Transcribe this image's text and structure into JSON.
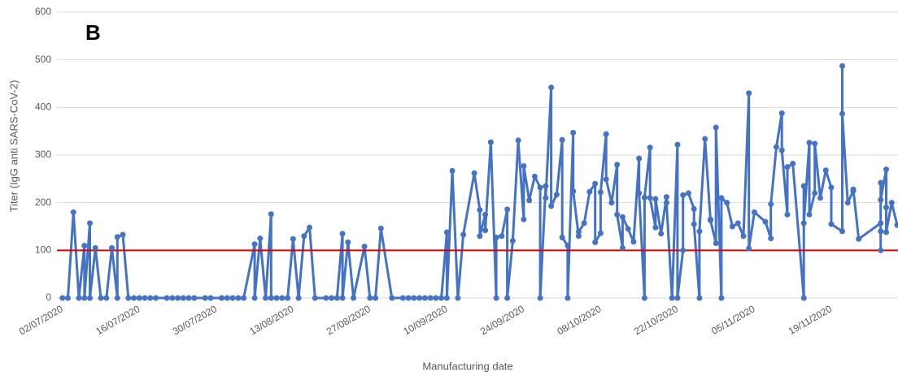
{
  "chart_data": {
    "type": "line",
    "title": "B",
    "x_label": "Manufacturing date",
    "y_label": "Titer (IgG anti SARS-CoV-2)",
    "color": "#4472c4",
    "hline": 100,
    "hline_color": "#e00000",
    "grid": true,
    "ylim": [
      0,
      600
    ],
    "yticks": [
      0,
      100,
      200,
      300,
      400,
      500,
      600
    ],
    "xlim": [
      "01/07/2020",
      "01/12/2020"
    ],
    "xticks": [
      "02/07/2020",
      "16/07/2020",
      "30/07/2020",
      "13/08/2020",
      "27/08/2020",
      "10/09/2020",
      "24/09/2020",
      "08/10/2020",
      "22/10/2020",
      "05/11/2020",
      "19/11/2020"
    ],
    "x": [
      "02/07/2020",
      "03/07/2020",
      "04/07/2020",
      "05/07/2020",
      "06/07/2020",
      "06/07/2020",
      "07/07/2020",
      "07/07/2020",
      "08/07/2020",
      "09/07/2020",
      "10/07/2020",
      "11/07/2020",
      "12/07/2020",
      "12/07/2020",
      "13/07/2020",
      "14/07/2020",
      "15/07/2020",
      "16/07/2020",
      "17/07/2020",
      "18/07/2020",
      "19/07/2020",
      "21/07/2020",
      "22/07/2020",
      "23/07/2020",
      "24/07/2020",
      "25/07/2020",
      "26/07/2020",
      "28/07/2020",
      "29/07/2020",
      "31/07/2020",
      "01/08/2020",
      "02/08/2020",
      "03/08/2020",
      "04/08/2020",
      "06/08/2020",
      "06/08/2020",
      "07/08/2020",
      "08/08/2020",
      "09/08/2020",
      "09/08/2020",
      "10/08/2020",
      "11/08/2020",
      "12/08/2020",
      "13/08/2020",
      "14/08/2020",
      "15/08/2020",
      "16/08/2020",
      "17/08/2020",
      "19/08/2020",
      "20/08/2020",
      "21/08/2020",
      "22/08/2020",
      "22/08/2020",
      "23/08/2020",
      "24/08/2020",
      "26/08/2020",
      "27/08/2020",
      "28/08/2020",
      "29/08/2020",
      "31/08/2020",
      "02/09/2020",
      "03/09/2020",
      "04/09/2020",
      "05/09/2020",
      "06/09/2020",
      "07/09/2020",
      "08/09/2020",
      "09/09/2020",
      "10/09/2020",
      "10/09/2020",
      "11/09/2020",
      "12/09/2020",
      "13/09/2020",
      "15/09/2020",
      "16/09/2020",
      "16/09/2020",
      "17/09/2020",
      "17/09/2020",
      "18/09/2020",
      "19/09/2020",
      "19/09/2020",
      "20/09/2020",
      "21/09/2020",
      "21/09/2020",
      "22/09/2020",
      "23/09/2020",
      "24/09/2020",
      "24/09/2020",
      "25/09/2020",
      "26/09/2020",
      "27/09/2020",
      "27/09/2020",
      "28/09/2020",
      "28/09/2020",
      "29/09/2020",
      "29/09/2020",
      "30/09/2020",
      "01/10/2020",
      "01/10/2020",
      "02/10/2020",
      "02/10/2020",
      "03/10/2020",
      "03/10/2020",
      "04/10/2020",
      "04/10/2020",
      "05/10/2020",
      "06/10/2020",
      "07/10/2020",
      "07/10/2020",
      "08/10/2020",
      "08/10/2020",
      "09/10/2020",
      "09/10/2020",
      "10/10/2020",
      "11/10/2020",
      "11/10/2020",
      "12/10/2020",
      "12/10/2020",
      "13/10/2020",
      "14/10/2020",
      "15/10/2020",
      "15/10/2020",
      "16/10/2020",
      "16/10/2020",
      "17/10/2020",
      "17/10/2020",
      "18/10/2020",
      "18/10/2020",
      "19/10/2020",
      "20/10/2020",
      "20/10/2020",
      "21/10/2020",
      "22/10/2020",
      "22/10/2020",
      "23/10/2020",
      "23/10/2020",
      "24/10/2020",
      "25/10/2020",
      "25/10/2020",
      "26/10/2020",
      "26/10/2020",
      "27/10/2020",
      "28/10/2020",
      "28/10/2020",
      "29/10/2020",
      "29/10/2020",
      "30/10/2020",
      "30/10/2020",
      "31/10/2020",
      "01/11/2020",
      "02/11/2020",
      "03/11/2020",
      "04/11/2020",
      "04/11/2020",
      "05/11/2020",
      "07/11/2020",
      "08/11/2020",
      "08/11/2020",
      "09/11/2020",
      "10/11/2020",
      "10/11/2020",
      "11/11/2020",
      "11/11/2020",
      "12/11/2020",
      "14/11/2020",
      "14/11/2020",
      "14/11/2020",
      "15/11/2020",
      "15/11/2020",
      "16/11/2020",
      "16/11/2020",
      "17/11/2020",
      "18/11/2020",
      "19/11/2020",
      "19/11/2020",
      "21/11/2020",
      "21/11/2020",
      "21/11/2020",
      "22/11/2020",
      "23/11/2020",
      "23/11/2020",
      "24/11/2020",
      "28/11/2020",
      "28/11/2020",
      "28/11/2020",
      "28/11/2020",
      "28/11/2020",
      "29/11/2020",
      "29/11/2020",
      "29/11/2020",
      "30/11/2020",
      "01/12/2020"
    ],
    "values": [
      0,
      0,
      180,
      0,
      110,
      0,
      157,
      0,
      105,
      0,
      0,
      105,
      0,
      128,
      133,
      0,
      0,
      0,
      0,
      0,
      0,
      0,
      0,
      0,
      0,
      0,
      0,
      0,
      0,
      0,
      0,
      0,
      0,
      0,
      113,
      0,
      125,
      0,
      176,
      0,
      0,
      0,
      0,
      124,
      0,
      130,
      148,
      0,
      0,
      0,
      0,
      135,
      0,
      117,
      0,
      108,
      0,
      0,
      146,
      0,
      0,
      0,
      0,
      0,
      0,
      0,
      0,
      0,
      138,
      0,
      267,
      0,
      133,
      262,
      185,
      130,
      175,
      142,
      327,
      0,
      127,
      130,
      186,
      0,
      120,
      331,
      165,
      277,
      205,
      255,
      232,
      0,
      235,
      210,
      442,
      193,
      217,
      332,
      127,
      110,
      0,
      347,
      224,
      130,
      139,
      157,
      223,
      240,
      117,
      136,
      222,
      344,
      249,
      200,
      280,
      175,
      105,
      170,
      145,
      118,
      293,
      220,
      0,
      211,
      316,
      210,
      148,
      208,
      135,
      212,
      200,
      0,
      322,
      0,
      100,
      216,
      220,
      187,
      155,
      0,
      140,
      334,
      165,
      163,
      115,
      358,
      0,
      210,
      200,
      150,
      157,
      130,
      430,
      104,
      180,
      160,
      125,
      197,
      317,
      388,
      310,
      175,
      275,
      282,
      0,
      235,
      157,
      326,
      175,
      220,
      324,
      210,
      268,
      232,
      155,
      140,
      487,
      387,
      200,
      225,
      228,
      124,
      157,
      100,
      140,
      242,
      206,
      270,
      190,
      138,
      200,
      153
    ]
  }
}
